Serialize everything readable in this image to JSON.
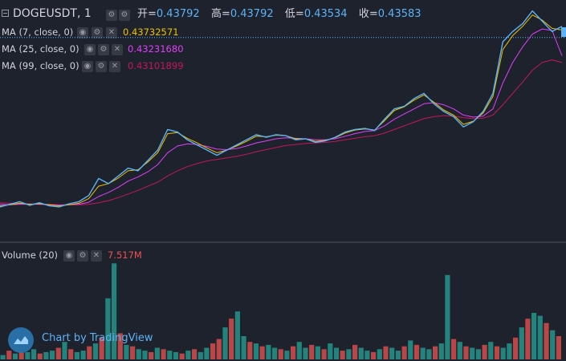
{
  "header": {
    "symbol": "DOGEUSDT, 1",
    "ohlc": [
      {
        "label": "开=",
        "value": "0.43792"
      },
      {
        "label": "高=",
        "value": "0.43792"
      },
      {
        "label": "低=",
        "value": "0.43534"
      },
      {
        "label": "收=",
        "value": "0.43583"
      }
    ]
  },
  "legend": {
    "ma7": {
      "label": "MA (7, close, 0)",
      "value": "0.43732571",
      "color": "#f0c000"
    },
    "ma25": {
      "label": "MA (25, close, 0)",
      "value": "0.43231680",
      "color": "#e040fb"
    },
    "ma99": {
      "label": "MA (99, close, 0)",
      "value": "0.43101899",
      "color": "#c2185b"
    }
  },
  "volume_pane": {
    "label": "Volume (20)",
    "value": "7.517M",
    "value_color": "#ef5350"
  },
  "branding": {
    "text": "Chart by TradingView"
  },
  "colors": {
    "background": "#1e222d",
    "up": "#26a69a",
    "down": "#ef5350",
    "candle_line": "#5cb3f7",
    "price_line": "#5cb3f7"
  },
  "chart_data": {
    "type": "line",
    "title": "DOGEUSDT, 1",
    "xlabel": "",
    "ylabel": "",
    "ylim": [
      0.398,
      0.44
    ],
    "series": [
      {
        "name": "",
        "role": "price",
        "values": [
          0.403,
          0.4035,
          0.404,
          0.4033,
          0.4038,
          0.4032,
          0.403,
          0.4036,
          0.404,
          0.4052,
          0.4085,
          0.4075,
          0.409,
          0.4105,
          0.41,
          0.412,
          0.414,
          0.418,
          0.4175,
          0.416,
          0.415,
          0.414,
          0.413,
          0.414,
          0.415,
          0.416,
          0.417,
          0.4165,
          0.417,
          0.4168,
          0.416,
          0.4162,
          0.4155,
          0.4158,
          0.4165,
          0.4175,
          0.418,
          0.4182,
          0.4178,
          0.42,
          0.422,
          0.4225,
          0.424,
          0.425,
          0.423,
          0.4215,
          0.4205,
          0.4185,
          0.4195,
          0.4215,
          0.425,
          0.435,
          0.437,
          0.4385,
          0.441,
          0.439,
          0.437,
          0.438
        ]
      },
      {
        "name": "MA (7, close, 0)",
        "role": "ma7",
        "values": [
          0.4032,
          0.4034,
          0.4037,
          0.4035,
          0.4036,
          0.4034,
          0.4032,
          0.4034,
          0.4037,
          0.4046,
          0.407,
          0.4075,
          0.4086,
          0.41,
          0.4102,
          0.4117,
          0.4135,
          0.4172,
          0.4174,
          0.4163,
          0.4154,
          0.4144,
          0.4135,
          0.414,
          0.4148,
          0.4157,
          0.4167,
          0.4166,
          0.4169,
          0.4168,
          0.4162,
          0.4162,
          0.4157,
          0.4159,
          0.4164,
          0.4173,
          0.4179,
          0.4181,
          0.4179,
          0.4197,
          0.4217,
          0.4224,
          0.4237,
          0.4247,
          0.4233,
          0.4218,
          0.4208,
          0.419,
          0.4196,
          0.4212,
          0.4244,
          0.4335,
          0.4362,
          0.438,
          0.4402,
          0.4392,
          0.4376,
          0.4373
        ]
      },
      {
        "name": "MA (25, close, 0)",
        "role": "ma25",
        "values": [
          0.4035,
          0.4034,
          0.4035,
          0.4035,
          0.4035,
          0.4034,
          0.4033,
          0.4034,
          0.4035,
          0.4039,
          0.405,
          0.4058,
          0.4068,
          0.408,
          0.4088,
          0.4098,
          0.4112,
          0.4135,
          0.4148,
          0.4152,
          0.4151,
          0.4147,
          0.4142,
          0.4141,
          0.4143,
          0.4148,
          0.4154,
          0.4158,
          0.4162,
          0.4164,
          0.4163,
          0.4162,
          0.416,
          0.416,
          0.4162,
          0.4167,
          0.4172,
          0.4176,
          0.4178,
          0.4187,
          0.42,
          0.421,
          0.422,
          0.423,
          0.4232,
          0.4228,
          0.422,
          0.4208,
          0.4204,
          0.4206,
          0.422,
          0.427,
          0.431,
          0.434,
          0.4365,
          0.4375,
          0.4372,
          0.4323
        ]
      },
      {
        "name": "MA (99, close, 0)",
        "role": "ma99",
        "values": [
          0.4038,
          0.4037,
          0.4036,
          0.4036,
          0.4035,
          0.4035,
          0.4034,
          0.4034,
          0.4034,
          0.4035,
          0.4038,
          0.4042,
          0.4048,
          0.4055,
          0.4062,
          0.407,
          0.4078,
          0.409,
          0.41,
          0.4108,
          0.4114,
          0.4119,
          0.4122,
          0.4125,
          0.4128,
          0.4132,
          0.4137,
          0.4141,
          0.4145,
          0.4149,
          0.4151,
          0.4153,
          0.4154,
          0.4155,
          0.4157,
          0.416,
          0.4163,
          0.4166,
          0.4168,
          0.4173,
          0.418,
          0.4187,
          0.4194,
          0.4201,
          0.4205,
          0.4207,
          0.4206,
          0.4203,
          0.4201,
          0.4202,
          0.4208,
          0.4228,
          0.425,
          0.4272,
          0.4295,
          0.431,
          0.4315,
          0.431
        ]
      }
    ],
    "volume": {
      "max": 7.5,
      "values": [
        0.3,
        0.6,
        0.4,
        0.9,
        0.5,
        0.7,
        0.4,
        0.5,
        0.6,
        0.8,
        1.2,
        0.7,
        0.5,
        0.6,
        0.9,
        1.1,
        1.5,
        4.2,
        6.6,
        1.8,
        1.0,
        0.9,
        0.7,
        0.6,
        0.5,
        0.8,
        0.7,
        0.6,
        0.5,
        0.4,
        0.6,
        0.7,
        0.5,
        0.8,
        1.1,
        1.4,
        2.2,
        2.8,
        3.3,
        1.6,
        1.2,
        1.1,
        0.9,
        1.0,
        0.8,
        0.7,
        0.6,
        0.9,
        1.2,
        0.8,
        1.0,
        0.9,
        0.7,
        1.1,
        0.8,
        0.6,
        0.7,
        1.0,
        0.8,
        0.6,
        0.5,
        0.7,
        0.9,
        0.8,
        0.6,
        0.9,
        1.3,
        1.0,
        0.8,
        0.7,
        0.9,
        1.1,
        5.8,
        1.4,
        1.2,
        0.9,
        0.8,
        0.7,
        1.0,
        1.2,
        0.9,
        0.8,
        1.1,
        1.5,
        2.2,
        2.8,
        3.2,
        3.0,
        2.5,
        2.0,
        1.6
      ],
      "up": [
        true,
        false,
        true,
        false,
        true,
        true,
        false,
        true,
        true,
        false,
        true,
        false,
        true,
        true,
        false,
        true,
        false,
        true,
        true,
        false,
        true,
        false,
        true,
        true,
        false,
        true,
        false,
        true,
        true,
        false,
        true,
        false,
        true,
        true,
        false,
        false,
        true,
        false,
        true,
        true,
        false,
        true,
        false,
        true,
        true,
        false,
        true,
        false,
        true,
        true,
        false,
        true,
        false,
        true,
        true,
        false,
        true,
        false,
        true,
        true,
        false,
        true,
        false,
        true,
        true,
        false,
        true,
        false,
        true,
        true,
        false,
        true,
        true,
        false,
        true,
        false,
        true,
        true,
        false,
        true,
        false,
        true,
        true,
        false,
        true,
        false,
        true,
        true,
        false,
        true,
        false
      ]
    }
  }
}
